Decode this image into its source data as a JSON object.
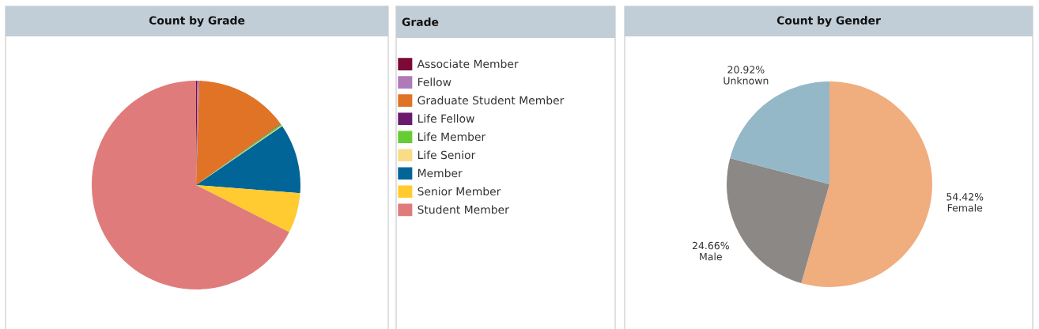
{
  "chart_data": [
    {
      "type": "pie",
      "title": "Count by Grade",
      "legend_title": "Grade",
      "legend": "right",
      "categories": [
        "Associate Member",
        "Fellow",
        "Graduate Student Member",
        "Life Fellow",
        "Life Member",
        "Life Senior",
        "Member",
        "Senior Member",
        "Student Member"
      ],
      "values": [
        0.2,
        0.3,
        14.5,
        0.1,
        0.25,
        0.1,
        10.8,
        6.2,
        67.55
      ],
      "colors": [
        "#7b0a36",
        "#b07ab8",
        "#e07325",
        "#6a1b6e",
        "#66cc33",
        "#f8dc88",
        "#026598",
        "#ffcb30",
        "#e07b7b"
      ]
    },
    {
      "type": "pie",
      "title": "Count by Gender",
      "categories": [
        "Female",
        "Male",
        "Unknown"
      ],
      "values": [
        54.42,
        24.66,
        20.92
      ],
      "value_labels": [
        "54.42%",
        "24.66%",
        "20.92%"
      ],
      "colors": [
        "#f0ad7e",
        "#8c8886",
        "#94b8c8"
      ]
    }
  ]
}
